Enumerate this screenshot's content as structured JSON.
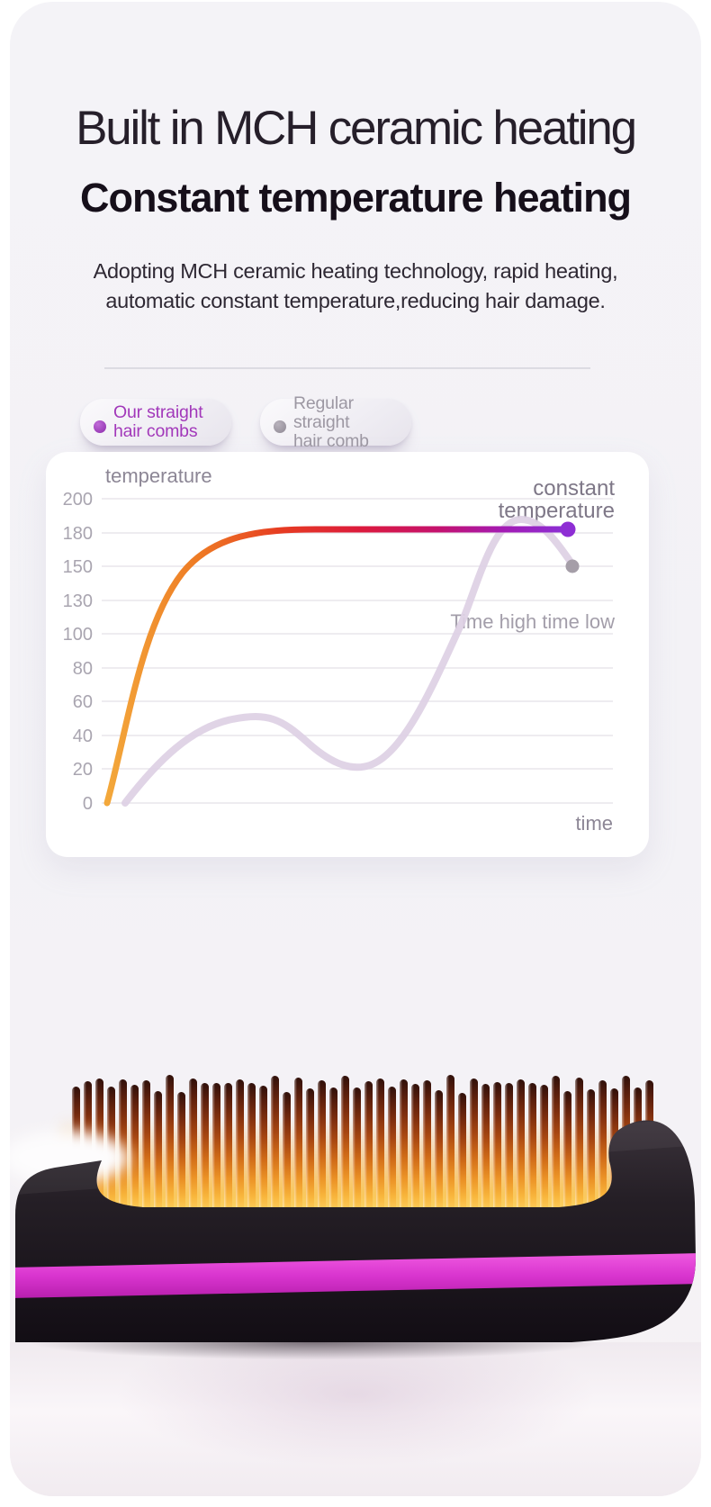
{
  "header": {
    "title_line1": "Built in MCH ceramic heating",
    "title_line2": "Constant temperature heating",
    "description": "Adopting MCH ceramic heating technology, rapid heating, automatic constant temperature,reducing hair damage."
  },
  "legend": {
    "our": {
      "line1": "Our straight",
      "line2": "hair combs",
      "dot_color": "#a33fc1",
      "text_color": "#a238ba"
    },
    "regular": {
      "line1": "Regular straight",
      "line2": "hair comb",
      "dot_color": "#a49ea9",
      "text_color": "#9d98a3"
    }
  },
  "chart_data": {
    "type": "line",
    "ylabel": "temperature",
    "xlabel": "time",
    "yticks": [
      200,
      180,
      150,
      130,
      100,
      80,
      60,
      40,
      20,
      0
    ],
    "axis_note": "y ticks evenly spaced, no x ticks shown, light horizontal gridlines",
    "annotations": {
      "constant": {
        "line1": "constant",
        "line2": "temperature"
      },
      "fluctuation": "Time high time low"
    },
    "series": [
      {
        "name": "Our straight hair combs",
        "colors": [
          "#f3a83b",
          "#ec6a20",
          "#e02330",
          "#c4126e",
          "#8b2fd6"
        ],
        "endpoint_marker_color": "#8e2ed4",
        "behavior": "rapid rise then constant temperature",
        "x_percent": [
          0,
          8,
          16,
          26,
          36,
          45,
          100
        ],
        "values": [
          0,
          60,
          120,
          165,
          180,
          182,
          182
        ]
      },
      {
        "name": "Regular straight hair comb",
        "colors": [
          "#ddd0e4"
        ],
        "endpoint_marker_color": "#a59ea8",
        "behavior": "temperature fluctuates high and low",
        "x_percent": [
          4,
          12,
          22,
          28,
          40,
          48,
          58,
          70,
          82,
          90,
          100
        ],
        "values": [
          0,
          30,
          60,
          70,
          48,
          38,
          55,
          115,
          188,
          180,
          150
        ]
      }
    ]
  },
  "product": {
    "description": "Black hair straightening brush with glowing heated bristles and magenta accent stripe",
    "body_color": "#1d1720",
    "stripe_color": "#d935cf",
    "glow_color": "#f6a62a"
  }
}
